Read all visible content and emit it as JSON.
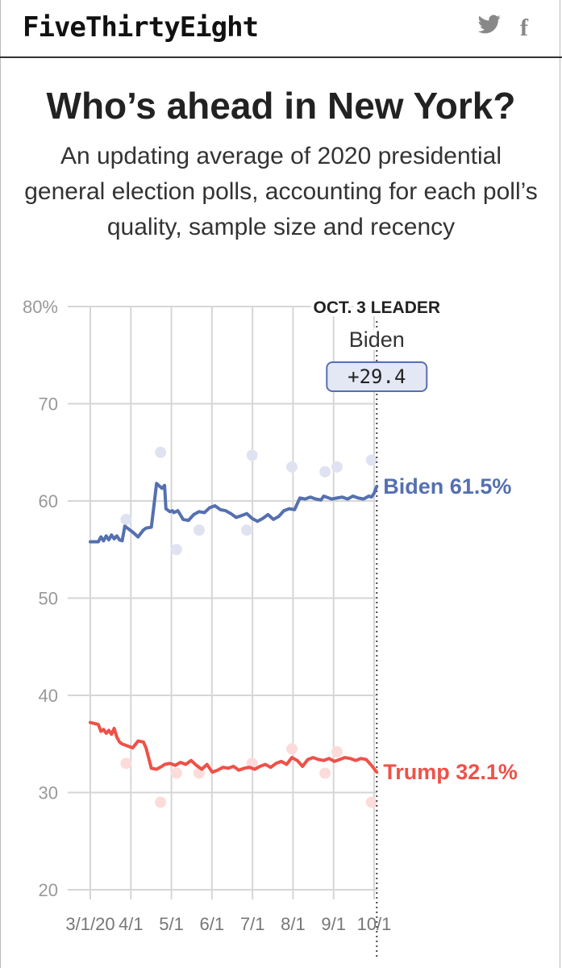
{
  "header": {
    "logo": "FiveThirtyEight",
    "twitter_icon": "twitter-icon",
    "facebook_icon": "facebook-icon",
    "facebook_glyph": "f"
  },
  "title": "Who’s ahead in New York?",
  "subtitle": "An updating average of 2020 presidential general election polls, accounting for each poll’s quality, sample size and recency",
  "chart_data": {
    "type": "line",
    "title": "Who’s ahead in New York?",
    "ylim": [
      20,
      80
    ],
    "y_ticks": [
      "80%",
      "70",
      "60",
      "50",
      "40",
      "30",
      "20"
    ],
    "x_ticks": [
      "3/1/20",
      "4/1",
      "5/1",
      "6/1",
      "7/1",
      "8/1",
      "9/1",
      "10/1"
    ],
    "x_range_days": [
      0,
      214
    ],
    "leader": {
      "label": "OCT. 3 LEADER",
      "name": "Biden",
      "margin": "+29.4",
      "day": 216
    },
    "colors": {
      "biden": "#5570b0",
      "trump": "#ee5148"
    },
    "series": [
      {
        "name": "Biden",
        "end_label": "Biden 61.5%",
        "color": "#5570b0",
        "x": [
          0,
          6,
          8,
          10,
          12,
          14,
          16,
          18,
          20,
          22,
          24,
          26,
          28,
          32,
          36,
          40,
          42,
          46,
          50,
          54,
          56,
          57,
          60,
          62,
          63,
          66,
          70,
          74,
          78,
          82,
          86,
          90,
          94,
          98,
          102,
          106,
          110,
          114,
          118,
          122,
          126,
          130,
          134,
          138,
          142,
          146,
          150,
          154,
          158,
          162,
          166,
          170,
          174,
          176,
          178,
          182,
          186,
          190,
          194,
          198,
          202,
          206,
          210,
          212,
          214,
          216
        ],
        "values": [
          55.8,
          55.8,
          56.3,
          55.9,
          56.4,
          56.0,
          56.5,
          56.1,
          56.4,
          56.0,
          55.9,
          57.4,
          57.2,
          56.8,
          56.3,
          57.0,
          57.2,
          57.3,
          61.8,
          61.3,
          61.6,
          59.2,
          58.9,
          59.0,
          58.8,
          59.0,
          58.1,
          58.0,
          58.6,
          58.9,
          58.8,
          59.3,
          59.5,
          59.1,
          59.0,
          58.7,
          58.3,
          58.5,
          58.7,
          58.2,
          57.9,
          58.2,
          58.6,
          58.1,
          58.4,
          59.0,
          59.2,
          59.1,
          60.3,
          60.2,
          60.4,
          60.2,
          60.1,
          60.5,
          60.4,
          60.2,
          60.3,
          60.4,
          60.2,
          60.5,
          60.3,
          60.2,
          60.5,
          60.4,
          60.8,
          61.5
        ]
      },
      {
        "name": "Trump",
        "end_label": "Trump 32.1%",
        "color": "#ee5148",
        "x": [
          0,
          6,
          8,
          10,
          12,
          14,
          16,
          18,
          20,
          22,
          24,
          26,
          28,
          32,
          36,
          40,
          42,
          46,
          50,
          54,
          56,
          60,
          64,
          68,
          72,
          76,
          80,
          84,
          88,
          92,
          96,
          100,
          104,
          108,
          112,
          116,
          120,
          124,
          128,
          132,
          136,
          140,
          144,
          148,
          152,
          156,
          160,
          164,
          168,
          172,
          176,
          180,
          184,
          188,
          192,
          196,
          200,
          204,
          208,
          212,
          216
        ],
        "values": [
          37.2,
          37.0,
          36.3,
          36.5,
          36.1,
          36.4,
          36.0,
          36.6,
          35.7,
          35.2,
          35.0,
          34.9,
          34.8,
          34.6,
          35.3,
          35.2,
          34.6,
          32.5,
          32.4,
          32.7,
          32.9,
          33.0,
          32.8,
          33.1,
          32.9,
          33.3,
          32.8,
          32.4,
          32.9,
          32.1,
          32.3,
          32.6,
          32.5,
          32.7,
          32.3,
          32.5,
          32.6,
          32.4,
          32.7,
          32.9,
          32.6,
          33.0,
          33.2,
          32.9,
          33.6,
          33.3,
          32.7,
          33.4,
          33.6,
          33.4,
          33.3,
          33.5,
          33.2,
          33.4,
          33.6,
          33.5,
          33.3,
          33.5,
          33.4,
          32.8,
          32.1
        ]
      }
    ],
    "polls": [
      {
        "candidate": "Biden",
        "x": 27,
        "value": 58.1
      },
      {
        "candidate": "Biden",
        "x": 53,
        "value": 65.0
      },
      {
        "candidate": "Biden",
        "x": 65,
        "value": 55.0
      },
      {
        "candidate": "Biden",
        "x": 82,
        "value": 57.0
      },
      {
        "candidate": "Biden",
        "x": 118,
        "value": 57.0
      },
      {
        "candidate": "Biden",
        "x": 122,
        "value": 64.7
      },
      {
        "candidate": "Biden",
        "x": 152,
        "value": 63.5
      },
      {
        "candidate": "Biden",
        "x": 177,
        "value": 63.0
      },
      {
        "candidate": "Biden",
        "x": 186,
        "value": 63.5
      },
      {
        "candidate": "Biden",
        "x": 212,
        "value": 64.2
      },
      {
        "candidate": "Trump",
        "x": 27,
        "value": 33.0
      },
      {
        "candidate": "Trump",
        "x": 53,
        "value": 29.0
      },
      {
        "candidate": "Trump",
        "x": 65,
        "value": 32.0
      },
      {
        "candidate": "Trump",
        "x": 82,
        "value": 32.0
      },
      {
        "candidate": "Trump",
        "x": 122,
        "value": 33.0
      },
      {
        "candidate": "Trump",
        "x": 152,
        "value": 34.5
      },
      {
        "candidate": "Trump",
        "x": 177,
        "value": 32.0
      },
      {
        "candidate": "Trump",
        "x": 186,
        "value": 34.2
      },
      {
        "candidate": "Trump",
        "x": 212,
        "value": 29.0
      }
    ]
  }
}
